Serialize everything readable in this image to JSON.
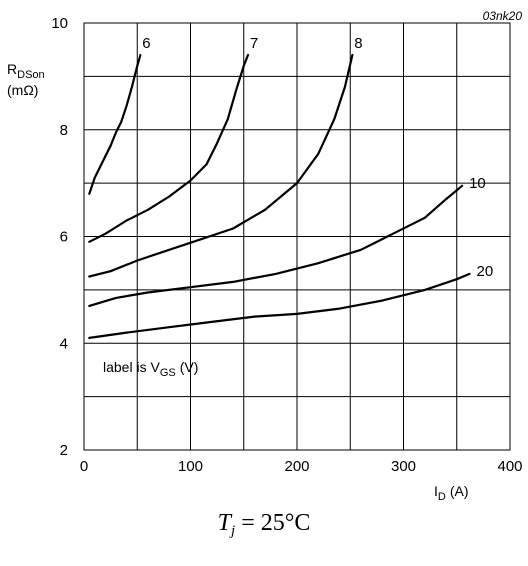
{
  "figure_id": "03nk20",
  "y_title": {
    "main": "R",
    "sub": "DSon",
    "unit": "(mΩ)"
  },
  "x_title": {
    "main": "I",
    "sub": "D",
    "unit": "(A)"
  },
  "annotation": {
    "prefix": "label is V",
    "sub": "GS",
    "suffix": "(V)"
  },
  "caption": {
    "var": "T",
    "sub": "j",
    "rest": "= 25°C"
  },
  "chart_data": {
    "type": "line",
    "title": "",
    "xlim": [
      0,
      400
    ],
    "ylim": [
      2,
      10
    ],
    "x_ticks": [
      0,
      100,
      200,
      300,
      400
    ],
    "y_ticks": [
      2,
      4,
      6,
      8,
      10
    ],
    "x_tick_labels": [
      "0",
      "100",
      "200",
      "300",
      "400"
    ],
    "y_tick_labels": [
      "2",
      "4",
      "6",
      "8",
      "10"
    ],
    "x_grid_step": 50,
    "y_grid_step": 1,
    "grid": true,
    "series": [
      {
        "name": "6",
        "points": [
          [
            5,
            6.8
          ],
          [
            10,
            7.1
          ],
          [
            15,
            7.3
          ],
          [
            20,
            7.5
          ],
          [
            25,
            7.7
          ],
          [
            30,
            7.95
          ],
          [
            35,
            8.15
          ],
          [
            40,
            8.45
          ],
          [
            45,
            8.8
          ],
          [
            50,
            9.2
          ],
          [
            53,
            9.4
          ]
        ]
      },
      {
        "name": "7",
        "points": [
          [
            5,
            5.9
          ],
          [
            20,
            6.05
          ],
          [
            40,
            6.3
          ],
          [
            60,
            6.5
          ],
          [
            80,
            6.75
          ],
          [
            100,
            7.05
          ],
          [
            115,
            7.35
          ],
          [
            125,
            7.75
          ],
          [
            135,
            8.2
          ],
          [
            143,
            8.75
          ],
          [
            150,
            9.2
          ],
          [
            154,
            9.4
          ]
        ]
      },
      {
        "name": "8",
        "points": [
          [
            5,
            5.25
          ],
          [
            25,
            5.35
          ],
          [
            50,
            5.55
          ],
          [
            80,
            5.75
          ],
          [
            110,
            5.95
          ],
          [
            140,
            6.15
          ],
          [
            170,
            6.5
          ],
          [
            200,
            7.0
          ],
          [
            220,
            7.55
          ],
          [
            235,
            8.2
          ],
          [
            245,
            8.8
          ],
          [
            252,
            9.4
          ]
        ]
      },
      {
        "name": "10",
        "points": [
          [
            5,
            4.7
          ],
          [
            30,
            4.85
          ],
          [
            60,
            4.95
          ],
          [
            100,
            5.05
          ],
          [
            140,
            5.15
          ],
          [
            180,
            5.3
          ],
          [
            220,
            5.5
          ],
          [
            260,
            5.75
          ],
          [
            290,
            6.05
          ],
          [
            320,
            6.35
          ],
          [
            340,
            6.7
          ],
          [
            355,
            6.95
          ]
        ]
      },
      {
        "name": "20",
        "points": [
          [
            5,
            4.1
          ],
          [
            40,
            4.2
          ],
          [
            80,
            4.3
          ],
          [
            120,
            4.4
          ],
          [
            160,
            4.5
          ],
          [
            200,
            4.55
          ],
          [
            240,
            4.65
          ],
          [
            280,
            4.8
          ],
          [
            320,
            5.0
          ],
          [
            350,
            5.2
          ],
          [
            362,
            5.3
          ]
        ]
      }
    ]
  }
}
